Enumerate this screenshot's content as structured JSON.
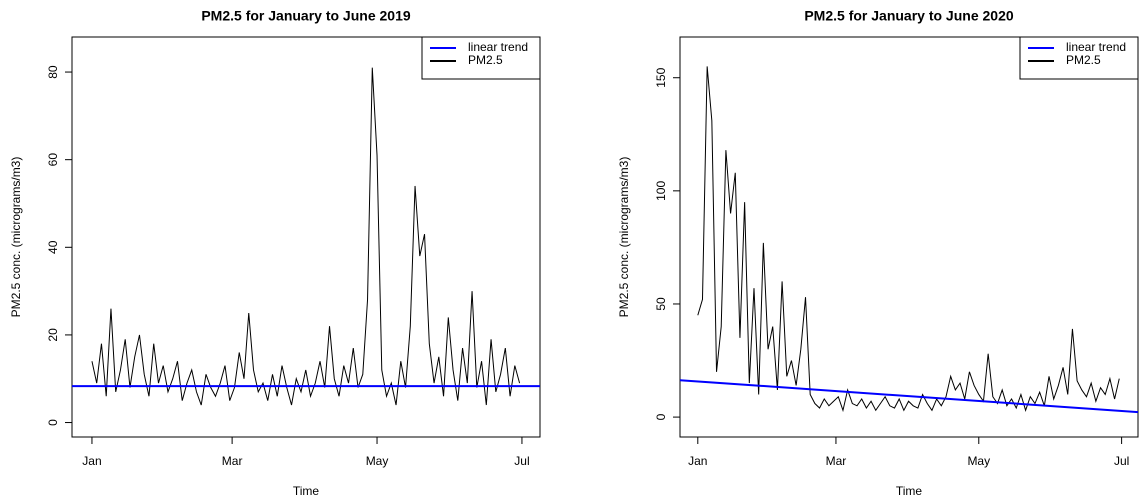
{
  "chart_data": [
    {
      "type": "line",
      "title": "PM2.5 for January to June 2019",
      "x_label": "Time",
      "y_label": "PM2.5 conc. (micrograms/m3)",
      "xlim": [
        -8.4,
        188.6
      ],
      "ylim": [
        -3.3,
        88
      ],
      "xticks": [
        {
          "value": 0,
          "label": "Jan"
        },
        {
          "value": 59,
          "label": "Mar"
        },
        {
          "value": 120,
          "label": "May"
        },
        {
          "value": 181,
          "label": "Jul"
        }
      ],
      "yticks": [
        0,
        20,
        40,
        60,
        80
      ],
      "legend": "top-right",
      "series": [
        {
          "name": "linear trend",
          "color": "#0000ff",
          "x": [
            -8.4,
            188.6
          ],
          "values": [
            8.3,
            8.3
          ]
        },
        {
          "name": "PM2.5",
          "color": "#000000",
          "x": [
            0,
            2,
            4,
            6,
            8,
            10,
            12,
            14,
            16,
            18,
            20,
            22,
            24,
            26,
            28,
            30,
            32,
            34,
            36,
            38,
            40,
            42,
            44,
            46,
            48,
            50,
            52,
            54,
            56,
            58,
            60,
            62,
            64,
            66,
            68,
            70,
            72,
            74,
            76,
            78,
            80,
            82,
            84,
            86,
            88,
            90,
            92,
            94,
            96,
            98,
            100,
            102,
            104,
            106,
            108,
            110,
            112,
            114,
            116,
            118,
            120,
            122,
            124,
            126,
            128,
            130,
            132,
            134,
            136,
            138,
            140,
            142,
            144,
            146,
            148,
            150,
            152,
            154,
            156,
            158,
            160,
            162,
            164,
            166,
            168,
            170,
            172,
            174,
            176,
            178,
            180
          ],
          "values": [
            14,
            9,
            18,
            6,
            26,
            7,
            12,
            19,
            8,
            15,
            20,
            11,
            6,
            18,
            9,
            13,
            7,
            10,
            14,
            5,
            9,
            12,
            7,
            4,
            11,
            8,
            6,
            9,
            13,
            5,
            8,
            16,
            10,
            25,
            12,
            7,
            9,
            5,
            11,
            6,
            13,
            8,
            4,
            10,
            7,
            12,
            6,
            9,
            14,
            8,
            22,
            10,
            6,
            13,
            9,
            17,
            8,
            11,
            28,
            81,
            61,
            12,
            6,
            9,
            4,
            14,
            8,
            22,
            54,
            38,
            43,
            18,
            9,
            15,
            6,
            24,
            12,
            5,
            17,
            9,
            30,
            8,
            14,
            4,
            19,
            7,
            11,
            17,
            6,
            13,
            9
          ]
        }
      ]
    },
    {
      "type": "line",
      "title": "PM2.5 for January to June 2020",
      "x_label": "Time",
      "y_label": "PM2.5 conc. (micrograms/m3)",
      "xlim": [
        -7.6,
        188
      ],
      "ylim": [
        -8.8,
        168
      ],
      "xticks": [
        {
          "value": 0,
          "label": "Jan"
        },
        {
          "value": 59,
          "label": "Mar"
        },
        {
          "value": 120,
          "label": "May"
        },
        {
          "value": 181,
          "label": "Jul"
        }
      ],
      "yticks": [
        0,
        50,
        100,
        150
      ],
      "legend": "top-right",
      "series": [
        {
          "name": "linear trend",
          "color": "#0000ff",
          "x": [
            -7.6,
            188
          ],
          "values": [
            16.3,
            2.2
          ]
        },
        {
          "name": "PM2.5",
          "color": "#000000",
          "x": [
            0,
            2,
            4,
            6,
            8,
            10,
            12,
            14,
            16,
            18,
            20,
            22,
            24,
            26,
            28,
            30,
            32,
            34,
            36,
            38,
            40,
            42,
            44,
            46,
            48,
            50,
            52,
            54,
            56,
            58,
            60,
            62,
            64,
            66,
            68,
            70,
            72,
            74,
            76,
            78,
            80,
            82,
            84,
            86,
            88,
            90,
            92,
            94,
            96,
            98,
            100,
            102,
            104,
            106,
            108,
            110,
            112,
            114,
            116,
            118,
            120,
            122,
            124,
            126,
            128,
            130,
            132,
            134,
            136,
            138,
            140,
            142,
            144,
            146,
            148,
            150,
            152,
            154,
            156,
            158,
            160,
            162,
            164,
            166,
            168,
            170,
            172,
            174,
            176,
            178,
            180
          ],
          "values": [
            45,
            52,
            155,
            131,
            20,
            40,
            118,
            90,
            108,
            35,
            95,
            15,
            57,
            10,
            77,
            30,
            40,
            12,
            60,
            18,
            25,
            14,
            30,
            53,
            10,
            6,
            4,
            8,
            5,
            7,
            9,
            3,
            12,
            6,
            5,
            8,
            4,
            7,
            3,
            6,
            9,
            5,
            4,
            8,
            3,
            7,
            5,
            4,
            10,
            6,
            3,
            8,
            5,
            9,
            18,
            12,
            15,
            8,
            20,
            14,
            10,
            7,
            28,
            9,
            6,
            12,
            5,
            8,
            4,
            10,
            3,
            9,
            6,
            11,
            5,
            18,
            8,
            14,
            22,
            10,
            39,
            16,
            12,
            9,
            15,
            7,
            13,
            10,
            17,
            8,
            17
          ]
        }
      ]
    }
  ]
}
